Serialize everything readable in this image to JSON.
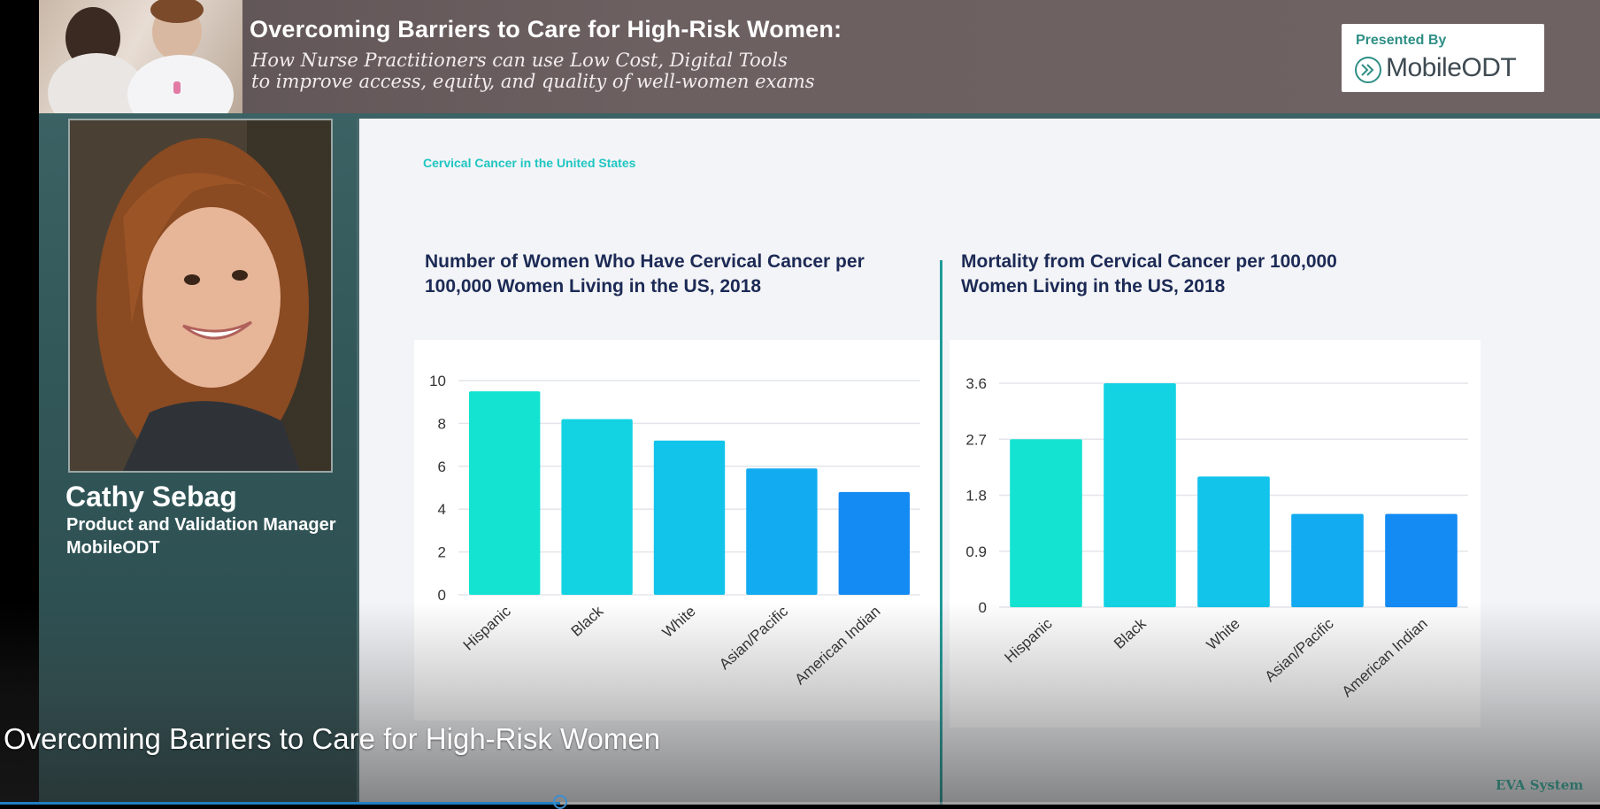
{
  "header": {
    "title": "Overcoming Barriers to Care for High-Risk Women:",
    "subtitle_line1": "How Nurse Practitioners can use Low Cost, Digital Tools",
    "subtitle_line2": "to improve access, equity, and quality of well-women exams",
    "presented_by": "Presented By",
    "logo_text": "MobileODT"
  },
  "speaker": {
    "name": "Cathy Sebag",
    "role": "Product and Validation Manager",
    "organization": "MobileODT"
  },
  "slide": {
    "kicker": "Cervical Cancer in the United States"
  },
  "chart_data": [
    {
      "type": "bar",
      "title": "Number of Women Who Have Cervical Cancer per\n100,000 Women Living in the US, 2018",
      "categories": [
        "Hispanic",
        "Black",
        "White",
        "Asian/Pacific",
        "American Indian"
      ],
      "values": [
        9.5,
        8.2,
        7.2,
        5.9,
        4.8
      ],
      "yticks": [
        "0",
        "2",
        "4",
        "6",
        "8",
        "10"
      ],
      "ylim": [
        0,
        10
      ],
      "colors": [
        "#14e3d2",
        "#13d3e3",
        "#12c3ea",
        "#12abf1",
        "#148af3"
      ],
      "grid": true
    },
    {
      "type": "bar",
      "title": "Mortality from Cervical Cancer per 100,000\nWomen Living in the US, 2018",
      "categories": [
        "Hispanic",
        "Black",
        "White",
        "Asian/Pacific",
        "American Indian"
      ],
      "values": [
        2.7,
        3.6,
        2.1,
        1.5,
        1.5
      ],
      "yticks": [
        "0",
        "0.9",
        "1.8",
        "2.7",
        "3.6"
      ],
      "ylim": [
        0,
        3.6
      ],
      "colors": [
        "#14e3d2",
        "#13d3e3",
        "#12c3ea",
        "#12abf1",
        "#148af3"
      ],
      "grid": true
    }
  ],
  "video": {
    "title": "Overcoming Barriers to Care for High-Risk Women",
    "watermark": "EVA System",
    "progress": 0.35
  }
}
